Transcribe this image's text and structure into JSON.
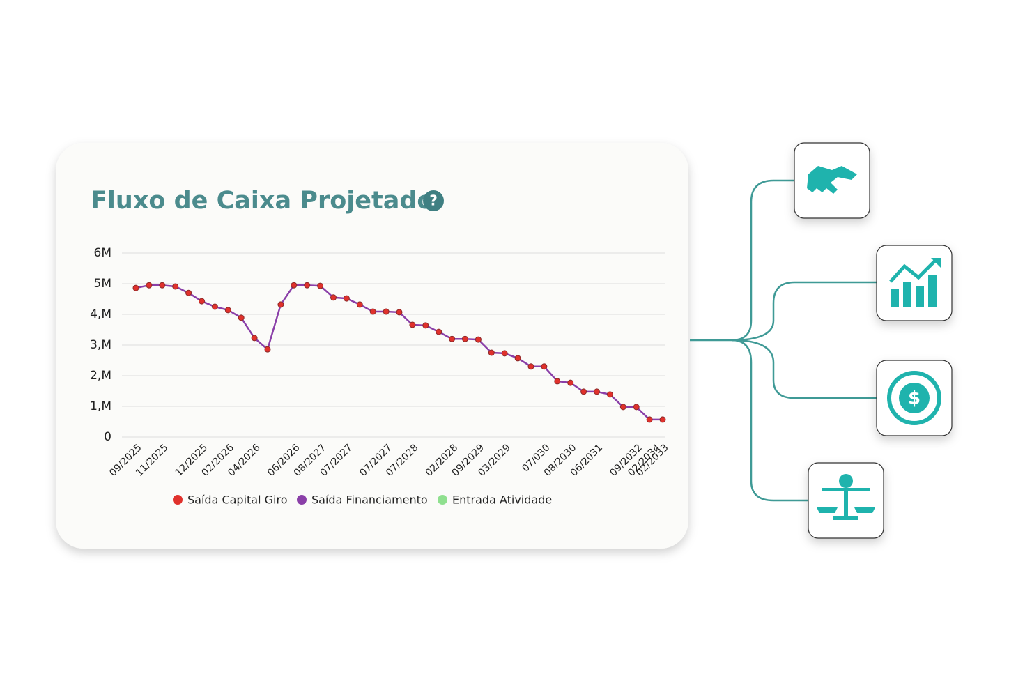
{
  "chart_data": {
    "type": "line",
    "title": "Fluxo de Caixa Projetado",
    "categories": [
      "09/2025",
      null,
      "11/2025",
      null,
      null,
      "12/2025",
      null,
      "02/2026",
      null,
      "04/2026",
      null,
      null,
      "06/2026",
      null,
      "08/2027",
      null,
      "07/2027",
      null,
      null,
      "07/2027",
      null,
      "07/2028",
      null,
      null,
      "02/2028",
      null,
      "09/2029",
      null,
      "03/2029",
      null,
      null,
      "07/030",
      null,
      "08/2030",
      null,
      "06/2031",
      null,
      null,
      "09/2032",
      null,
      "02/2033"
    ],
    "extra_category": "02/2034",
    "ylim": [
      0,
      6000000
    ],
    "yticks": [
      0,
      {
        "value": 1000000,
        "label": "1,M"
      },
      {
        "value": 2000000,
        "label": "2,M"
      },
      {
        "value": 3000000,
        "label": "3,M"
      },
      {
        "value": 4000000,
        "label": "4,M"
      },
      {
        "value": 5000000,
        "label": "5M"
      },
      {
        "value": 6000000,
        "label": "6M"
      }
    ],
    "grid": true,
    "series": [
      {
        "name": "Saída Capital Giro",
        "color": "#e0312c",
        "style": "markers",
        "values": [
          4860000,
          4950000,
          4950000,
          4910000,
          4700000,
          4430000,
          4250000,
          4140000,
          3890000,
          3230000,
          2860000,
          4320000,
          4950000,
          4950000,
          4930000,
          4550000,
          4520000,
          4320000,
          4090000,
          4090000,
          4070000,
          3660000,
          3640000,
          3430000,
          3200000,
          3200000,
          3180000,
          2750000,
          2730000,
          2570000,
          2300000,
          2300000,
          1820000,
          1770000,
          1480000,
          1480000,
          1390000,
          980000,
          980000,
          570000,
          570000
        ]
      },
      {
        "name": "Saída Financiamento",
        "color": "#8a3fa8",
        "style": "line",
        "values": [
          4860000,
          4950000,
          4950000,
          4910000,
          4700000,
          4430000,
          4250000,
          4140000,
          3890000,
          3230000,
          2860000,
          4320000,
          4950000,
          4950000,
          4930000,
          4550000,
          4520000,
          4320000,
          4090000,
          4090000,
          4070000,
          3660000,
          3640000,
          3430000,
          3200000,
          3200000,
          3180000,
          2750000,
          2730000,
          2570000,
          2300000,
          2300000,
          1820000,
          1770000,
          1480000,
          1480000,
          1390000,
          980000,
          980000,
          570000,
          570000
        ]
      },
      {
        "name": "Entrada Atividade",
        "color": "#8fe08f",
        "style": "line",
        "values": [
          null,
          null,
          null,
          null,
          null,
          null,
          null,
          null,
          null,
          null,
          null,
          null,
          null,
          null,
          null,
          null,
          null,
          null,
          null,
          null,
          null,
          null,
          null,
          null,
          null,
          null,
          null,
          null,
          null,
          null,
          null,
          null,
          null,
          null,
          null,
          null,
          null,
          null,
          null,
          null,
          null
        ]
      }
    ]
  }
}
